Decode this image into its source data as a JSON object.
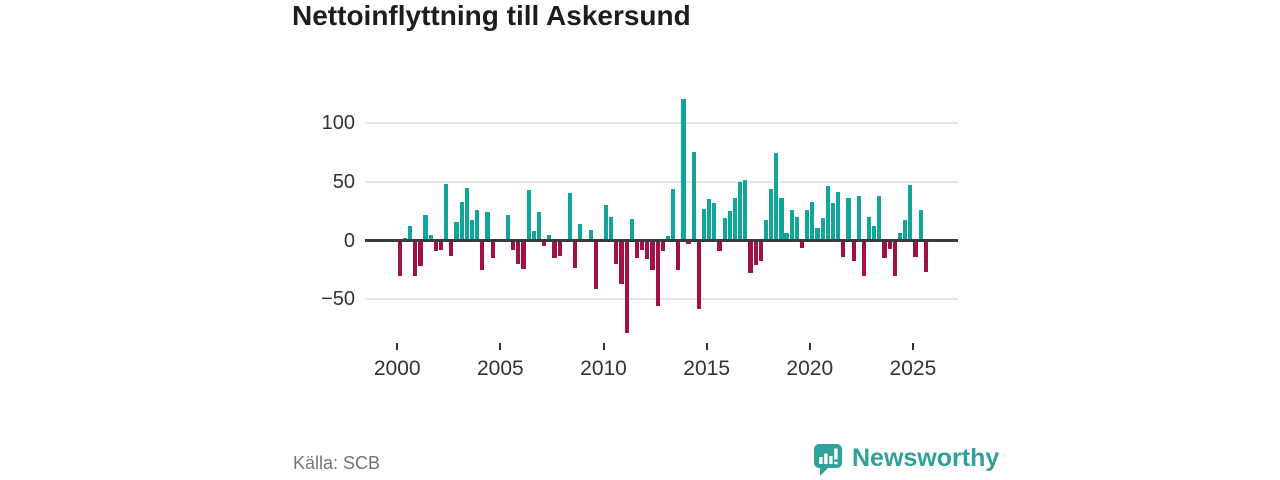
{
  "header": {
    "title": "Nettoinflyttning till Askersund"
  },
  "footer": {
    "source": "Källa: SCB",
    "logo_text": "Newsworthy"
  },
  "colors": {
    "positive_bar": "#10a69c",
    "negative_bar": "#a31047",
    "zero_line": "#3b3b3b",
    "gridline": "#e4e4e4",
    "brand_teal": "#2ea19a"
  },
  "chart_data": {
    "type": "bar",
    "title": "Nettoinflyttning till Askersund",
    "x_unit": "quarter",
    "x_range": [
      "2000 Q1",
      "2025 Q3"
    ],
    "ylim": [
      -85,
      130
    ],
    "grid": "horizontal",
    "y_ticks": [
      100,
      50,
      0,
      -50
    ],
    "y_tick_labels": [
      "100",
      "50",
      "0",
      "−50"
    ],
    "x_tick_labels": [
      "2000",
      "2005",
      "2010",
      "2015",
      "2020",
      "2025"
    ],
    "positive_color": "#10a69c",
    "negative_color": "#a31047",
    "values_by_year": {
      "2000": [
        -30,
        2,
        12,
        -30
      ],
      "2001": [
        -22,
        22,
        5,
        -9
      ],
      "2002": [
        -8,
        48,
        -13,
        16
      ],
      "2003": [
        33,
        45,
        17,
        26
      ],
      "2004": [
        -25,
        24,
        -15,
        0
      ],
      "2005": [
        0,
        22,
        -8,
        -20
      ],
      "2006": [
        -24,
        43,
        8,
        24
      ],
      "2007": [
        -5,
        5,
        -15,
        -13
      ],
      "2008": [
        0,
        40,
        -23,
        14
      ],
      "2009": [
        0,
        9,
        -41,
        0
      ],
      "2010": [
        30,
        20,
        -20,
        -37
      ],
      "2011": [
        -79,
        18,
        -15,
        -8
      ],
      "2012": [
        -16,
        -25,
        -56,
        -9
      ],
      "2013": [
        4,
        44,
        -25,
        120
      ],
      "2014": [
        -3,
        75,
        -58,
        27
      ],
      "2015": [
        35,
        32,
        -9,
        19
      ],
      "2016": [
        25,
        36,
        50,
        51
      ],
      "2017": [
        -28,
        -21,
        -17,
        17
      ],
      "2018": [
        44,
        74,
        36,
        6
      ],
      "2019": [
        26,
        20,
        -6,
        26
      ],
      "2020": [
        33,
        11,
        19,
        46
      ],
      "2021": [
        32,
        41,
        -14,
        36
      ],
      "2022": [
        -17,
        38,
        -30,
        20
      ],
      "2023": [
        12,
        38,
        -15,
        -7
      ],
      "2024": [
        -30,
        6,
        17,
        47
      ],
      "2025": [
        -14,
        26,
        -27
      ]
    }
  }
}
